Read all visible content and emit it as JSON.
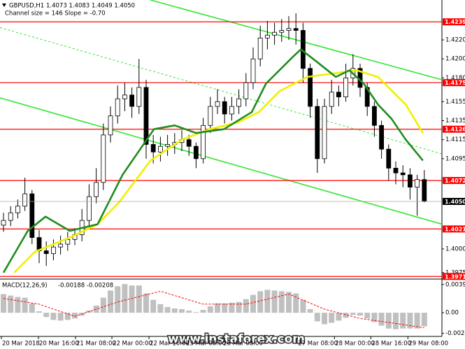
{
  "chart_data": [
    {
      "type": "candlestick",
      "title": "GBPUSD,H1",
      "readout": "1.4073 1.4083 1.4049 1.4050",
      "subtitle": "Channel size = 146 Slope = -0.70",
      "color": "#000000",
      "up_fill": "#ffffff",
      "down_fill": "#000000",
      "open": [
        1.4025,
        1.403,
        1.4038,
        1.4045,
        1.4058,
        1.4012,
        1.3998,
        1.3995,
        1.4002,
        1.4005,
        1.401,
        1.4015,
        1.403,
        1.4055,
        1.407,
        1.412,
        1.414,
        1.4158,
        1.4162,
        1.415,
        1.417,
        1.411,
        1.4102,
        1.4108,
        1.411,
        1.4112,
        1.4115,
        1.4108,
        1.4095,
        1.413,
        1.415,
        1.4155,
        1.4142,
        1.415,
        1.4158,
        1.4175,
        1.42,
        1.4222,
        1.4225,
        1.4228,
        1.423,
        1.4232,
        1.423,
        1.419,
        1.415,
        1.4095,
        1.415,
        1.4165,
        1.416,
        1.418,
        1.419,
        1.417,
        1.415,
        1.413,
        1.4105,
        1.4085,
        1.408,
        1.4078,
        1.4065,
        1.4073
      ],
      "high": [
        1.4038,
        1.4045,
        1.4052,
        1.4075,
        1.4062,
        1.402,
        1.4008,
        1.401,
        1.4014,
        1.4018,
        1.4022,
        1.4042,
        1.4068,
        1.4085,
        1.4132,
        1.415,
        1.4172,
        1.4175,
        1.417,
        1.42,
        1.4178,
        1.412,
        1.4118,
        1.412,
        1.4122,
        1.4125,
        1.412,
        1.4112,
        1.4138,
        1.416,
        1.4168,
        1.416,
        1.416,
        1.4168,
        1.4185,
        1.4212,
        1.4235,
        1.424,
        1.4238,
        1.4242,
        1.4245,
        1.4248,
        1.4238,
        1.4195,
        1.4158,
        1.4158,
        1.4178,
        1.4172,
        1.4195,
        1.4205,
        1.4195,
        1.4175,
        1.4155,
        1.4135,
        1.411,
        1.4092,
        1.4088,
        1.4085,
        1.4078,
        1.4083
      ],
      "low": [
        1.4018,
        1.4024,
        1.4032,
        1.404,
        1.4005,
        1.3985,
        1.3982,
        1.3988,
        1.3994,
        1.3998,
        1.4004,
        1.4008,
        1.4024,
        1.4048,
        1.4062,
        1.4112,
        1.4132,
        1.4145,
        1.4138,
        1.4142,
        1.4095,
        1.409,
        1.4092,
        1.4098,
        1.41,
        1.4103,
        1.4098,
        1.4085,
        1.409,
        1.4122,
        1.4142,
        1.4132,
        1.4135,
        1.4142,
        1.415,
        1.4168,
        1.4192,
        1.421,
        1.4215,
        1.4218,
        1.422,
        1.4215,
        1.4175,
        1.4138,
        1.408,
        1.409,
        1.4142,
        1.415,
        1.4155,
        1.4172,
        1.416,
        1.414,
        1.4118,
        1.4095,
        1.4072,
        1.4068,
        1.4065,
        1.4052,
        1.4035,
        1.4049
      ],
      "close": [
        1.403,
        1.4038,
        1.4045,
        1.4058,
        1.4012,
        1.3998,
        1.3995,
        1.4002,
        1.4005,
        1.401,
        1.4015,
        1.403,
        1.4055,
        1.407,
        1.412,
        1.414,
        1.4158,
        1.4162,
        1.415,
        1.417,
        1.411,
        1.4102,
        1.4108,
        1.411,
        1.4112,
        1.4115,
        1.4108,
        1.4095,
        1.413,
        1.415,
        1.4155,
        1.4142,
        1.415,
        1.4158,
        1.4175,
        1.42,
        1.4222,
        1.4225,
        1.4228,
        1.423,
        1.4232,
        1.423,
        1.419,
        1.415,
        1.4095,
        1.415,
        1.4165,
        1.416,
        1.418,
        1.419,
        1.417,
        1.415,
        1.413,
        1.4105,
        1.4085,
        1.408,
        1.4078,
        1.4065,
        1.4073,
        1.405
      ],
      "lines": [
        {
          "color": "#f0f000",
          "x": [
            1.5,
            4.4,
            9.3,
            13.2,
            16.2,
            20.6,
            25,
            28.9,
            32.8,
            35.8,
            38.7,
            42.6,
            46.6,
            49.5,
            52.5,
            56.4,
            58.8
          ],
          "values": [
            1.3975,
            1.3997,
            1.4012,
            1.4026,
            1.4049,
            1.4093,
            1.4115,
            1.4126,
            1.4133,
            1.4144,
            1.4166,
            1.4181,
            1.4185,
            1.4188,
            1.4181,
            1.4152,
            1.4122
          ]
        },
        {
          "color": "#1e8c1e",
          "x": [
            0,
            3.4,
            5.9,
            9.3,
            13.2,
            16.7,
            21.1,
            24,
            27,
            30.9,
            34.8,
            36.8,
            40.7,
            41.7,
            44.1,
            46.6,
            48.5,
            50.5,
            52.5,
            54.4,
            56.4,
            58.8
          ],
          "values": [
            1.3975,
            1.4019,
            1.4034,
            1.4019,
            1.4026,
            1.4078,
            1.4126,
            1.413,
            1.4122,
            1.4126,
            1.4144,
            1.4174,
            1.4203,
            1.421,
            1.4196,
            1.4181,
            1.4188,
            1.4174,
            1.4152,
            1.4137,
            1.4115,
            1.4093
          ]
        }
      ],
      "trendlines": [
        {
          "color": "#33e633",
          "dashed": false,
          "x": [
            20.6,
            61.5
          ],
          "values": [
            1.4262,
            1.4178
          ]
        },
        {
          "color": "#33e633",
          "dashed": false,
          "x": [
            -0.5,
            61.5
          ],
          "values": [
            1.4159,
            1.4026
          ]
        },
        {
          "color": "#33e633",
          "dashed": true,
          "x": [
            -0.5,
            61.5
          ],
          "values": [
            1.4233,
            1.41
          ]
        }
      ],
      "levels_color": "#ff0000",
      "levels": [
        {
          "value": 1.4239,
          "label": "1.4239"
        },
        {
          "value": 1.4175,
          "label": "1.4175"
        },
        {
          "value": 1.4126,
          "label": "1.4126"
        },
        {
          "value": 1.4072,
          "label": "1.4072"
        },
        {
          "value": 1.4021,
          "label": "1.4021"
        },
        {
          "value": 1.3971,
          "label": "1.3971"
        }
      ],
      "last_price": {
        "value": 1.405,
        "label": "1.4050"
      },
      "ylim": [
        1.3969,
        1.4262
      ],
      "yticks": [
        {
          "value": 1.422,
          "label": "1.4220"
        },
        {
          "value": 1.42,
          "label": "1.4200"
        },
        {
          "value": 1.418,
          "label": "1.4180"
        },
        {
          "value": 1.4155,
          "label": "1.4155"
        },
        {
          "value": 1.4135,
          "label": "1.4135"
        },
        {
          "value": 1.4115,
          "label": "1.4115"
        },
        {
          "value": 1.4095,
          "label": "1.4095"
        },
        {
          "value": 1.4,
          "label": "1.4000"
        },
        {
          "value": 1.3975,
          "label": "1.3975"
        }
      ],
      "xticks": [
        {
          "value": -0.3,
          "label": "20 Mar 2018"
        },
        {
          "value": 4.9,
          "label": "20 Mar 16:00"
        },
        {
          "value": 10.1,
          "label": "21 Mar 08:00"
        },
        {
          "value": 15.2,
          "label": "22 Mar 00:00"
        },
        {
          "value": 20.4,
          "label": "22 Mar 16:00"
        },
        {
          "value": 25.5,
          "label": "23 Mar 08:00"
        },
        {
          "value": 30.7,
          "label": "26 Mar 08:00"
        },
        {
          "value": 41.2,
          "label": "27 Mar 08:00"
        },
        {
          "value": 46.4,
          "label": "28 Mar 00:00"
        },
        {
          "value": 51.5,
          "label": "28 Mar 16:00"
        },
        {
          "value": 56.7,
          "label": "29 Mar 08:00"
        }
      ]
    },
    {
      "type": "bar",
      "title": "MACD(12,26,9)",
      "readout": "-0.00188 -0.00208",
      "color": "#c0c0c0",
      "values": [
        0.0026,
        0.0024,
        0.0022,
        0.0021,
        0.0013,
        0.0002,
        -0.0006,
        -0.001,
        -0.0011,
        -0.001,
        -0.0008,
        -0.0004,
        0.0003,
        0.001,
        0.0021,
        0.0031,
        0.0037,
        0.004,
        0.0038,
        0.0038,
        0.0027,
        0.0018,
        0.0012,
        0.0008,
        0.0006,
        0.0005,
        0.0003,
        0.0001,
        0.0004,
        0.0009,
        0.0013,
        0.0013,
        0.0014,
        0.0015,
        0.0019,
        0.0025,
        0.003,
        0.0032,
        0.0031,
        0.003,
        0.0029,
        0.0027,
        0.0018,
        0.0005,
        -0.0012,
        -0.0016,
        -0.0014,
        -0.0011,
        -0.0007,
        -0.0003,
        -0.0004,
        -0.0008,
        -0.0013,
        -0.0018,
        -0.0022,
        -0.0023,
        -0.0022,
        -0.0022,
        -0.0022,
        -0.0019
      ],
      "signal": {
        "color": "#ff0000",
        "x": [
          0,
          5,
          10,
          16,
          22,
          28,
          34,
          40,
          45,
          50,
          55,
          59
        ],
        "values": [
          0.002,
          0.0012,
          -0.0005,
          0.0015,
          0.003,
          0.0012,
          0.0012,
          0.0026,
          0.0005,
          -0.0008,
          -0.0015,
          -0.0021
        ]
      },
      "ylim": [
        -0.0033,
        0.0046
      ],
      "yticks": [
        {
          "value": 0.00394,
          "label": "0.00394"
        },
        {
          "value": 0,
          "label": "0.00"
        },
        {
          "value": -0.00287,
          "label": "-0.00287"
        }
      ]
    }
  ],
  "watermark": "www.instaforex.com"
}
